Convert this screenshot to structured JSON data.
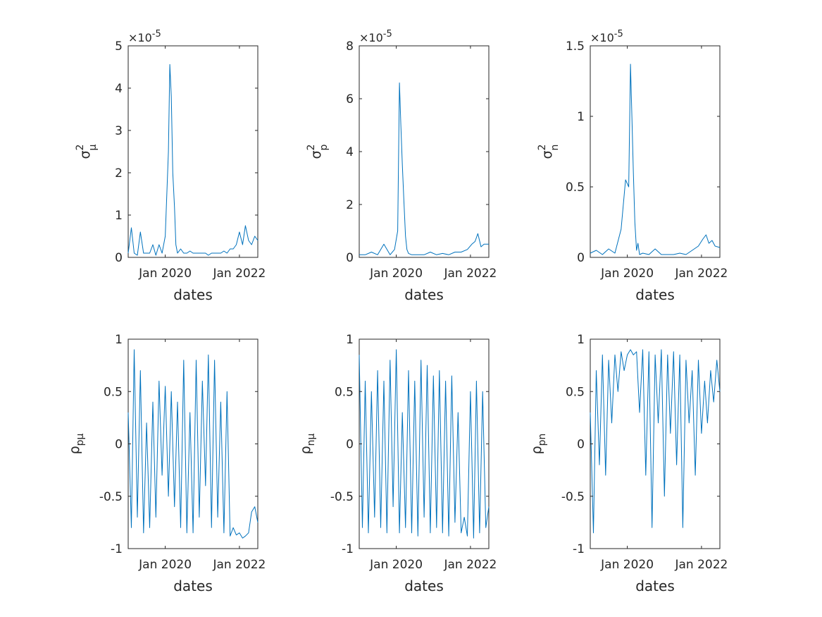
{
  "figure": {
    "background": "#ffffff",
    "line_color": "#0072BD",
    "axis_color": "#262626"
  },
  "chart_data": [
    {
      "type": "line",
      "ylabel": {
        "base": "σ",
        "sup": "2",
        "sub": "μ"
      },
      "xlabel": "dates",
      "exponent_label": "×10",
      "exponent_power": "-5",
      "ylim": [
        0,
        5
      ],
      "yticks": [
        0,
        1,
        2,
        3,
        4,
        5
      ],
      "ytick_labels": [
        "0",
        "1",
        "2",
        "3",
        "4",
        "5"
      ],
      "xlim": [
        "2019-01-01",
        "2022-07-01"
      ],
      "xticks": [
        "2020-01-01",
        "2022-01-01"
      ],
      "xtick_labels": [
        "Jan 2020",
        "Jan 2022"
      ],
      "series": [
        {
          "x": [
            "2019-01-01",
            "2019-02-01",
            "2019-03-01",
            "2019-04-01",
            "2019-05-01",
            "2019-06-01",
            "2019-07-01",
            "2019-08-01",
            "2019-09-01",
            "2019-10-01",
            "2019-11-01",
            "2019-12-01",
            "2020-01-01",
            "2020-02-01",
            "2020-02-15",
            "2020-03-01",
            "2020-03-15",
            "2020-04-01",
            "2020-04-15",
            "2020-05-01",
            "2020-06-01",
            "2020-07-01",
            "2020-08-01",
            "2020-09-01",
            "2020-10-01",
            "2020-11-01",
            "2020-12-01",
            "2021-01-01",
            "2021-02-01",
            "2021-03-01",
            "2021-04-01",
            "2021-05-01",
            "2021-06-01",
            "2021-07-01",
            "2021-08-01",
            "2021-09-01",
            "2021-10-01",
            "2021-11-01",
            "2021-12-01",
            "2022-01-01",
            "2022-02-01",
            "2022-03-01",
            "2022-04-01",
            "2022-05-01",
            "2022-06-01",
            "2022-07-01"
          ],
          "y": [
            0.1,
            0.7,
            0.1,
            0.05,
            0.6,
            0.1,
            0.1,
            0.1,
            0.3,
            0.05,
            0.3,
            0.1,
            0.5,
            2.5,
            4.56,
            3.8,
            2.0,
            1.2,
            0.3,
            0.1,
            0.2,
            0.1,
            0.1,
            0.15,
            0.1,
            0.1,
            0.1,
            0.1,
            0.1,
            0.05,
            0.1,
            0.1,
            0.1,
            0.1,
            0.15,
            0.1,
            0.2,
            0.2,
            0.3,
            0.6,
            0.3,
            0.75,
            0.4,
            0.3,
            0.5,
            0.4
          ]
        }
      ]
    },
    {
      "type": "line",
      "ylabel": {
        "base": "σ",
        "sup": "2",
        "sub": "p"
      },
      "xlabel": "dates",
      "exponent_label": "×10",
      "exponent_power": "-5",
      "ylim": [
        0,
        8
      ],
      "yticks": [
        0,
        2,
        4,
        6,
        8
      ],
      "ytick_labels": [
        "0",
        "2",
        "4",
        "6",
        "8"
      ],
      "xlim": [
        "2019-01-01",
        "2022-07-01"
      ],
      "xticks": [
        "2020-01-01",
        "2022-01-01"
      ],
      "xtick_labels": [
        "Jan 2020",
        "Jan 2022"
      ],
      "series": [
        {
          "x": [
            "2019-01-01",
            "2019-03-01",
            "2019-05-01",
            "2019-07-01",
            "2019-09-01",
            "2019-11-01",
            "2019-12-15",
            "2020-01-15",
            "2020-02-01",
            "2020-02-15",
            "2020-03-01",
            "2020-03-15",
            "2020-04-01",
            "2020-04-15",
            "2020-05-01",
            "2020-06-01",
            "2020-08-01",
            "2020-10-01",
            "2020-12-01",
            "2021-02-01",
            "2021-04-01",
            "2021-06-01",
            "2021-08-01",
            "2021-10-01",
            "2021-12-01",
            "2022-01-15",
            "2022-02-15",
            "2022-03-15",
            "2022-04-15",
            "2022-05-15",
            "2022-07-01"
          ],
          "y": [
            0.1,
            0.1,
            0.2,
            0.1,
            0.5,
            0.1,
            0.3,
            1.0,
            6.6,
            5.0,
            3.5,
            2.2,
            0.8,
            0.3,
            0.15,
            0.1,
            0.1,
            0.1,
            0.2,
            0.1,
            0.15,
            0.1,
            0.2,
            0.2,
            0.3,
            0.5,
            0.6,
            0.9,
            0.4,
            0.5,
            0.5
          ]
        }
      ]
    },
    {
      "type": "line",
      "ylabel": {
        "base": "σ",
        "sup": "2",
        "sub": "n"
      },
      "xlabel": "dates",
      "exponent_label": "×10",
      "exponent_power": "-5",
      "ylim": [
        0,
        1.5
      ],
      "yticks": [
        0,
        0.5,
        1,
        1.5
      ],
      "ytick_labels": [
        "0",
        "0.5",
        "1",
        "1.5"
      ],
      "xlim": [
        "2019-01-01",
        "2022-07-01"
      ],
      "xticks": [
        "2020-01-01",
        "2022-01-01"
      ],
      "xtick_labels": [
        "Jan 2020",
        "Jan 2022"
      ],
      "series": [
        {
          "x": [
            "2019-01-01",
            "2019-03-01",
            "2019-05-01",
            "2019-07-01",
            "2019-09-01",
            "2019-11-01",
            "2019-12-15",
            "2020-01-15",
            "2020-02-01",
            "2020-02-15",
            "2020-03-01",
            "2020-03-15",
            "2020-04-01",
            "2020-04-15",
            "2020-05-01",
            "2020-06-01",
            "2020-08-01",
            "2020-10-01",
            "2020-12-01",
            "2021-02-01",
            "2021-04-01",
            "2021-06-01",
            "2021-08-01",
            "2021-10-01",
            "2021-12-01",
            "2022-01-15",
            "2022-02-15",
            "2022-03-15",
            "2022-04-15",
            "2022-05-15",
            "2022-07-01"
          ],
          "y": [
            0.03,
            0.05,
            0.02,
            0.06,
            0.03,
            0.2,
            0.55,
            0.5,
            1.37,
            1.0,
            0.6,
            0.25,
            0.05,
            0.1,
            0.02,
            0.03,
            0.02,
            0.06,
            0.02,
            0.02,
            0.02,
            0.03,
            0.02,
            0.05,
            0.08,
            0.13,
            0.16,
            0.1,
            0.12,
            0.08,
            0.07
          ]
        }
      ]
    },
    {
      "type": "line",
      "ylabel": {
        "base": "ρ",
        "sub": "pμ"
      },
      "xlabel": "dates",
      "ylim": [
        -1,
        1
      ],
      "yticks": [
        -1,
        -0.5,
        0,
        0.5,
        1
      ],
      "ytick_labels": [
        "-1",
        "-0.5",
        "0",
        "0.5",
        "1"
      ],
      "xlim": [
        "2019-01-01",
        "2022-07-01"
      ],
      "xticks": [
        "2020-01-01",
        "2022-01-01"
      ],
      "xtick_labels": [
        "Jan 2020",
        "Jan 2022"
      ],
      "series": [
        {
          "x": [
            "2019-01-01",
            "2019-02-01",
            "2019-03-01",
            "2019-04-01",
            "2019-05-01",
            "2019-06-01",
            "2019-07-01",
            "2019-08-01",
            "2019-09-01",
            "2019-10-01",
            "2019-11-01",
            "2019-12-01",
            "2020-01-01",
            "2020-02-01",
            "2020-03-01",
            "2020-04-01",
            "2020-05-01",
            "2020-06-01",
            "2020-07-01",
            "2020-08-01",
            "2020-09-01",
            "2020-10-01",
            "2020-11-01",
            "2020-12-01",
            "2021-01-01",
            "2021-02-01",
            "2021-03-01",
            "2021-04-01",
            "2021-05-01",
            "2021-06-01",
            "2021-07-01",
            "2021-08-01",
            "2021-09-01",
            "2021-10-01",
            "2021-11-01",
            "2021-12-01",
            "2022-01-01",
            "2022-02-01",
            "2022-03-01",
            "2022-04-01",
            "2022-05-01",
            "2022-06-01",
            "2022-07-01"
          ],
          "y": [
            0.3,
            -0.8,
            0.9,
            -0.7,
            0.7,
            -0.85,
            0.2,
            -0.8,
            0.4,
            -0.7,
            0.6,
            -0.3,
            0.55,
            -0.5,
            0.5,
            -0.6,
            0.4,
            -0.8,
            0.8,
            -0.85,
            0.3,
            -0.85,
            0.8,
            -0.7,
            0.6,
            -0.4,
            0.85,
            -0.8,
            0.8,
            -0.7,
            0.4,
            -0.85,
            0.5,
            -0.88,
            -0.8,
            -0.87,
            -0.85,
            -0.9,
            -0.88,
            -0.85,
            -0.65,
            -0.6,
            -0.75
          ]
        }
      ]
    },
    {
      "type": "line",
      "ylabel": {
        "base": "ρ",
        "sub": "nμ"
      },
      "xlabel": "dates",
      "ylim": [
        -1,
        1
      ],
      "yticks": [
        -1,
        -0.5,
        0,
        0.5,
        1
      ],
      "ytick_labels": [
        "-1",
        "-0.5",
        "0",
        "0.5",
        "1"
      ],
      "xlim": [
        "2019-01-01",
        "2022-07-01"
      ],
      "xticks": [
        "2020-01-01",
        "2022-01-01"
      ],
      "xtick_labels": [
        "Jan 2020",
        "Jan 2022"
      ],
      "series": [
        {
          "x": [
            "2019-01-01",
            "2019-02-01",
            "2019-03-01",
            "2019-04-01",
            "2019-05-01",
            "2019-06-01",
            "2019-07-01",
            "2019-08-01",
            "2019-09-01",
            "2019-10-01",
            "2019-11-01",
            "2019-12-01",
            "2020-01-01",
            "2020-02-01",
            "2020-03-01",
            "2020-04-01",
            "2020-05-01",
            "2020-06-01",
            "2020-07-01",
            "2020-08-01",
            "2020-09-01",
            "2020-10-01",
            "2020-11-01",
            "2020-12-01",
            "2021-01-01",
            "2021-02-01",
            "2021-03-01",
            "2021-04-01",
            "2021-05-01",
            "2021-06-01",
            "2021-07-01",
            "2021-08-01",
            "2021-09-01",
            "2021-10-01",
            "2021-11-01",
            "2021-12-01",
            "2022-01-01",
            "2022-02-01",
            "2022-03-01",
            "2022-04-01",
            "2022-05-01",
            "2022-06-01",
            "2022-07-01"
          ],
          "y": [
            0.85,
            -0.8,
            0.6,
            -0.85,
            0.5,
            -0.7,
            0.7,
            -0.8,
            0.6,
            -0.85,
            0.8,
            -0.6,
            0.9,
            -0.85,
            0.3,
            -0.8,
            0.7,
            -0.85,
            0.6,
            -0.88,
            0.8,
            -0.7,
            0.75,
            -0.85,
            0.65,
            -0.8,
            0.7,
            -0.85,
            0.6,
            -0.88,
            0.65,
            -0.75,
            0.3,
            -0.85,
            -0.7,
            -0.88,
            0.5,
            -0.9,
            0.6,
            -0.85,
            0.5,
            -0.8,
            -0.6
          ]
        }
      ]
    },
    {
      "type": "line",
      "ylabel": {
        "base": "ρ",
        "sub": "pn"
      },
      "xlabel": "dates",
      "ylim": [
        -1,
        1
      ],
      "yticks": [
        -1,
        -0.5,
        0,
        0.5,
        1
      ],
      "ytick_labels": [
        "-1",
        "-0.5",
        "0",
        "0.5",
        "1"
      ],
      "xlim": [
        "2019-01-01",
        "2022-07-01"
      ],
      "xticks": [
        "2020-01-01",
        "2022-01-01"
      ],
      "xtick_labels": [
        "Jan 2020",
        "Jan 2022"
      ],
      "series": [
        {
          "x": [
            "2019-01-01",
            "2019-02-01",
            "2019-03-01",
            "2019-04-01",
            "2019-05-01",
            "2019-06-01",
            "2019-07-01",
            "2019-08-01",
            "2019-09-01",
            "2019-10-01",
            "2019-11-01",
            "2019-12-01",
            "2020-01-01",
            "2020-02-01",
            "2020-03-01",
            "2020-04-01",
            "2020-05-01",
            "2020-06-01",
            "2020-07-01",
            "2020-08-01",
            "2020-09-01",
            "2020-10-01",
            "2020-11-01",
            "2020-12-01",
            "2021-01-01",
            "2021-02-01",
            "2021-03-01",
            "2021-04-01",
            "2021-05-01",
            "2021-06-01",
            "2021-07-01",
            "2021-08-01",
            "2021-09-01",
            "2021-10-01",
            "2021-11-01",
            "2021-12-01",
            "2022-01-01",
            "2022-02-01",
            "2022-03-01",
            "2022-04-01",
            "2022-05-01",
            "2022-06-01",
            "2022-07-01"
          ],
          "y": [
            0.3,
            -0.85,
            0.7,
            -0.2,
            0.85,
            -0.3,
            0.8,
            0.2,
            0.85,
            0.5,
            0.88,
            0.7,
            0.85,
            0.9,
            0.85,
            0.88,
            0.3,
            0.9,
            -0.3,
            0.88,
            -0.8,
            0.85,
            0.2,
            0.9,
            -0.5,
            0.85,
            0.1,
            0.88,
            -0.2,
            0.85,
            -0.8,
            0.8,
            0.2,
            0.7,
            -0.3,
            0.8,
            0.1,
            0.6,
            0.2,
            0.7,
            0.4,
            0.8,
            0.5
          ]
        }
      ]
    }
  ]
}
